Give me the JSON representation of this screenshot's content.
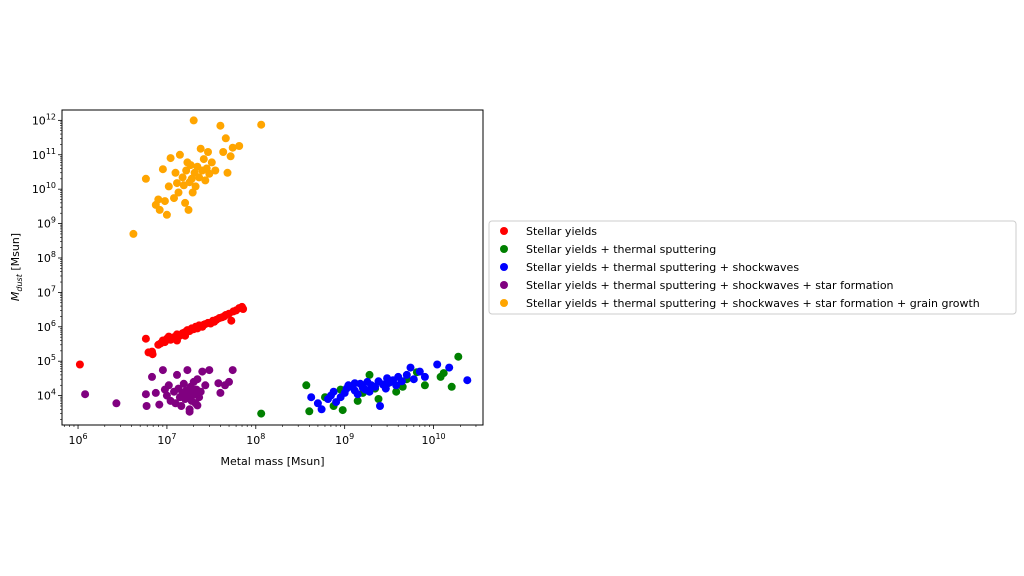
{
  "chart_data": {
    "type": "scatter",
    "xlabel": "Metal mass [Msun]",
    "ylabel_main": "M",
    "ylabel_sub": "dust",
    "ylabel_unit": " [Msun]",
    "xscale": "log",
    "yscale": "log",
    "xlim": [
      660000,
      36000000000
    ],
    "ylim": [
      1400,
      2000000000000
    ],
    "x_ticks": [
      {
        "value": 1000000,
        "base": "10",
        "exp": "6"
      },
      {
        "value": 10000000,
        "base": "10",
        "exp": "7"
      },
      {
        "value": 100000000,
        "base": "10",
        "exp": "8"
      },
      {
        "value": 1000000000,
        "base": "10",
        "exp": "9"
      },
      {
        "value": 10000000000,
        "base": "10",
        "exp": "10"
      }
    ],
    "y_ticks": [
      {
        "value": 10000,
        "base": "10",
        "exp": "4"
      },
      {
        "value": 100000,
        "base": "10",
        "exp": "5"
      },
      {
        "value": 1000000,
        "base": "10",
        "exp": "6"
      },
      {
        "value": 10000000,
        "base": "10",
        "exp": "7"
      },
      {
        "value": 100000000,
        "base": "10",
        "exp": "8"
      },
      {
        "value": 1000000000,
        "base": "10",
        "exp": "9"
      },
      {
        "value": 10000000000,
        "base": "10",
        "exp": "10"
      },
      {
        "value": 100000000000,
        "base": "10",
        "exp": "11"
      },
      {
        "value": 1000000000000,
        "base": "10",
        "exp": "12"
      }
    ],
    "grid": false,
    "legend_position": "right, outside plot",
    "series": [
      {
        "name": "Stellar yields",
        "color": "#ff0000",
        "points": [
          [
            1050000.0,
            80000.0
          ],
          [
            5800000.0,
            450000.0
          ],
          [
            6200000.0,
            180000.0
          ],
          [
            6800000.0,
            190000.0
          ],
          [
            6900000.0,
            160000.0
          ],
          [
            8000000.0,
            300000.0
          ],
          [
            8500000.0,
            330000.0
          ],
          [
            9000000.0,
            400000.0
          ],
          [
            9500000.0,
            360000.0
          ],
          [
            10000000.0,
            450000.0
          ],
          [
            10500000.0,
            520000.0
          ],
          [
            11000000.0,
            420000.0
          ],
          [
            12000000.0,
            500000.0
          ],
          [
            13000000.0,
            600000.0
          ],
          [
            14000000.0,
            550000.0
          ],
          [
            15000000.0,
            650000.0
          ],
          [
            16000000.0,
            700000.0
          ],
          [
            17000000.0,
            800000.0
          ],
          [
            18000000.0,
            750000.0
          ],
          [
            19000000.0,
            900000.0
          ],
          [
            20000000.0,
            850000.0
          ],
          [
            21000000.0,
            1000000.0
          ],
          [
            23000000.0,
            1100000.0
          ],
          [
            25000000.0,
            1000000.0
          ],
          [
            27000000.0,
            1200000.0
          ],
          [
            29000000.0,
            1300000.0
          ],
          [
            31000000.0,
            1250000.0
          ],
          [
            33000000.0,
            1500000.0
          ],
          [
            36000000.0,
            1600000.0
          ],
          [
            39000000.0,
            1800000.0
          ],
          [
            42000000.0,
            1900000.0
          ],
          [
            46000000.0,
            2200000.0
          ],
          [
            50000000.0,
            2400000.0
          ],
          [
            53000000.0,
            1500000.0
          ],
          [
            56000000.0,
            2800000.0
          ],
          [
            60000000.0,
            3000000.0
          ],
          [
            65000000.0,
            3500000.0
          ],
          [
            70000000.0,
            3800000.0
          ],
          [
            72000000.0,
            3300000.0
          ],
          [
            13000000.0,
            400000.0
          ],
          [
            16000000.0,
            550000.0
          ],
          [
            22000000.0,
            900000.0
          ],
          [
            26000000.0,
            1150000.0
          ],
          [
            34000000.0,
            1400000.0
          ],
          [
            44000000.0,
            2000000.0
          ]
        ]
      },
      {
        "name": "Stellar yields + thermal sputtering",
        "color": "#008000",
        "points": [
          [
            115000000.0,
            3000.0
          ],
          [
            370000000.0,
            20000.0
          ],
          [
            400000000.0,
            3500.0
          ],
          [
            600000000.0,
            9000.0
          ],
          [
            750000000.0,
            5000.0
          ],
          [
            900000000.0,
            15000.0
          ],
          [
            950000000.0,
            3800.0
          ],
          [
            1400000000.0,
            7000.0
          ],
          [
            1600000000.0,
            12000.0
          ],
          [
            1900000000.0,
            40000.0
          ],
          [
            2400000000.0,
            8000.0
          ],
          [
            3000000000.0,
            22000.0
          ],
          [
            3800000000.0,
            13000.0
          ],
          [
            4500000000.0,
            18000.0
          ],
          [
            5000000000.0,
            30000.0
          ],
          [
            6500000000.0,
            48000.0
          ],
          [
            8000000000.0,
            20000.0
          ],
          [
            12000000000.0,
            35000.0
          ],
          [
            13000000000.0,
            45000.0
          ],
          [
            16000000000.0,
            18000.0
          ],
          [
            19000000000.0,
            135000.0
          ],
          [
            2200000000.0,
            16000.0
          ]
        ]
      },
      {
        "name": "Stellar yields + thermal sputtering + shockwaves",
        "color": "#0000ff",
        "points": [
          [
            420000000.0,
            9000.0
          ],
          [
            500000000.0,
            6000.0
          ],
          [
            550000000.0,
            4000.0
          ],
          [
            650000000.0,
            8000.0
          ],
          [
            700000000.0,
            10000.0
          ],
          [
            750000000.0,
            13000.0
          ],
          [
            800000000.0,
            6500.0
          ],
          [
            900000000.0,
            9000.0
          ],
          [
            1000000000.0,
            12000.0
          ],
          [
            1050000000.0,
            16000.0
          ],
          [
            1100000000.0,
            20000.0
          ],
          [
            1200000000.0,
            18000.0
          ],
          [
            1300000000.0,
            14000.0
          ],
          [
            1400000000.0,
            11000.0
          ],
          [
            1500000000.0,
            22000.0
          ],
          [
            1600000000.0,
            17000.0
          ],
          [
            1700000000.0,
            15000.0
          ],
          [
            1800000000.0,
            25000.0
          ],
          [
            1900000000.0,
            13000.0
          ],
          [
            2000000000.0,
            20000.0
          ],
          [
            2200000000.0,
            18000.0
          ],
          [
            2400000000.0,
            26000.0
          ],
          [
            2500000000.0,
            5000.0
          ],
          [
            2700000000.0,
            21000.0
          ],
          [
            3000000000.0,
            32000.0
          ],
          [
            3200000000.0,
            24000.0
          ],
          [
            3500000000.0,
            28000.0
          ],
          [
            3800000000.0,
            20000.0
          ],
          [
            4000000000.0,
            35000.0
          ],
          [
            4400000000.0,
            26000.0
          ],
          [
            5000000000.0,
            40000.0
          ],
          [
            5500000000.0,
            65000.0
          ],
          [
            6000000000.0,
            30000.0
          ],
          [
            7000000000.0,
            50000.0
          ],
          [
            8000000000.0,
            35000.0
          ],
          [
            11000000000.0,
            80000.0
          ],
          [
            15000000000.0,
            65000.0
          ],
          [
            24000000000.0,
            28000.0
          ],
          [
            1300000000.0,
            23000.0
          ],
          [
            2900000000.0,
            16000.0
          ]
        ]
      },
      {
        "name": "Stellar yields + thermal sputtering + shockwaves + star formation",
        "color": "#800080",
        "points": [
          [
            1200000.0,
            11000.0
          ],
          [
            2700000.0,
            6000.0
          ],
          [
            5800000.0,
            11000.0
          ],
          [
            5900000.0,
            5000.0
          ],
          [
            6800000.0,
            35000.0
          ],
          [
            7500000.0,
            12000.0
          ],
          [
            8200000.0,
            5500.0
          ],
          [
            9000000.0,
            55000.0
          ],
          [
            9500000.0,
            15000.0
          ],
          [
            10000000.0,
            10000.0
          ],
          [
            10500000.0,
            20000.0
          ],
          [
            11000000.0,
            7000.0
          ],
          [
            12000000.0,
            13000.0
          ],
          [
            12500000.0,
            6000.0
          ],
          [
            13000000.0,
            40000.0
          ],
          [
            13500000.0,
            16000.0
          ],
          [
            14000000.0,
            9000.0
          ],
          [
            14500000.0,
            5000.0
          ],
          [
            15000000.0,
            12000.0
          ],
          [
            15500000.0,
            22000.0
          ],
          [
            16000000.0,
            8000.0
          ],
          [
            16500000.0,
            14000.0
          ],
          [
            17000000.0,
            55000.0
          ],
          [
            17500000.0,
            10000.0
          ],
          [
            18000000.0,
            4000.0
          ],
          [
            18500000.0,
            18000.0
          ],
          [
            19000000.0,
            7000.0
          ],
          [
            19500000.0,
            13000.0
          ],
          [
            20000000.0,
            25000.0
          ],
          [
            20500000.0,
            11000.0
          ],
          [
            21000000.0,
            6000.0
          ],
          [
            21500000.0,
            15000.0
          ],
          [
            22000000.0,
            30000.0
          ],
          [
            23000000.0,
            9000.0
          ],
          [
            24000000.0,
            13000.0
          ],
          [
            25000000.0,
            50000.0
          ],
          [
            27000000.0,
            20000.0
          ],
          [
            30000000.0,
            55000.0
          ],
          [
            38000000.0,
            23000.0
          ],
          [
            40000000.0,
            12000.0
          ],
          [
            45000000.0,
            20000.0
          ],
          [
            50000000.0,
            25000.0
          ],
          [
            55000000.0,
            55000.0
          ],
          [
            18000000.0,
            3400.0
          ],
          [
            22000000.0,
            5200.0
          ]
        ]
      },
      {
        "name": "Stellar yields + thermal sputtering + shockwaves + star formation + grain growth",
        "color": "#ffa500",
        "points": [
          [
            4200000.0,
            500000000.0
          ],
          [
            5800000.0,
            20000000000.0
          ],
          [
            7500000.0,
            3500000000.0
          ],
          [
            8000000.0,
            5000000000.0
          ],
          [
            8300000.0,
            2500000000.0
          ],
          [
            9000000.0,
            38000000000.0
          ],
          [
            9500000.0,
            4500000000.0
          ],
          [
            10000000.0,
            1800000000.0
          ],
          [
            10500000.0,
            12000000000.0
          ],
          [
            11000000.0,
            80000000000.0
          ],
          [
            12000000.0,
            5500000000.0
          ],
          [
            12500000.0,
            30000000000.0
          ],
          [
            13000000.0,
            15000000000.0
          ],
          [
            13500000.0,
            8000000000.0
          ],
          [
            14000000.0,
            100000000000.0
          ],
          [
            15000000.0,
            22000000000.0
          ],
          [
            15500000.0,
            13000000000.0
          ],
          [
            16000000.0,
            4000000000.0
          ],
          [
            16500000.0,
            35000000000.0
          ],
          [
            17000000.0,
            60000000000.0
          ],
          [
            17500000.0,
            2500000000.0
          ],
          [
            18000000.0,
            16000000000.0
          ],
          [
            18500000.0,
            50000000000.0
          ],
          [
            19000000.0,
            20000000000.0
          ],
          [
            19500000.0,
            8000000000.0
          ],
          [
            20000000.0,
            1000000000000.0
          ],
          [
            20500000.0,
            30000000000.0
          ],
          [
            21000000.0,
            12000000000.0
          ],
          [
            22000000.0,
            45000000000.0
          ],
          [
            23000000.0,
            22000000000.0
          ],
          [
            24000000.0,
            150000000000.0
          ],
          [
            25000000.0,
            35000000000.0
          ],
          [
            26000000.0,
            75000000000.0
          ],
          [
            27000000.0,
            18000000000.0
          ],
          [
            28000000.0,
            40000000000.0
          ],
          [
            29000000.0,
            120000000000.0
          ],
          [
            30000000.0,
            28000000000.0
          ],
          [
            32000000.0,
            60000000000.0
          ],
          [
            35000000.0,
            35000000000.0
          ],
          [
            40000000.0,
            700000000000.0
          ],
          [
            43000000.0,
            120000000000.0
          ],
          [
            46000000.0,
            300000000000.0
          ],
          [
            48000000.0,
            30000000000.0
          ],
          [
            52000000.0,
            90000000000.0
          ],
          [
            55000000.0,
            160000000000.0
          ],
          [
            65000000.0,
            180000000000.0
          ],
          [
            115000000.0,
            750000000000.0
          ]
        ]
      }
    ]
  }
}
